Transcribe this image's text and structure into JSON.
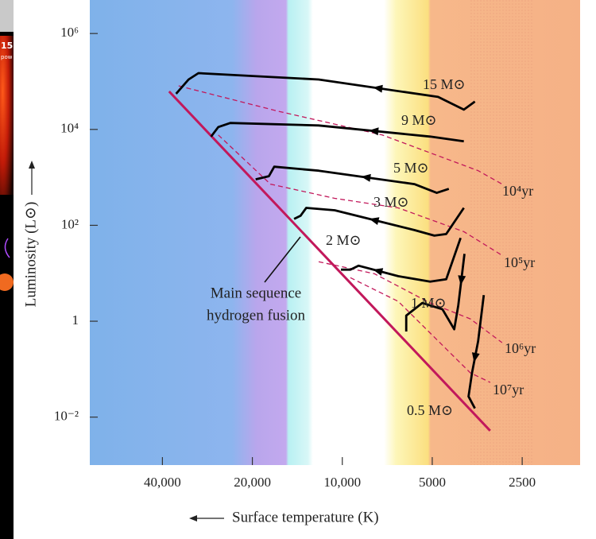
{
  "left_fragment": {
    "number": "15",
    "text": "pow"
  },
  "chart_data": {
    "type": "line",
    "x_scale": "log",
    "y_scale": "log",
    "xlabel": "Surface temperature (K)",
    "ylabel": "Luminosity (L⊙)",
    "xlim": [
      70000,
      1600
    ],
    "ylim": [
      0.001,
      5000000
    ],
    "xticks": [
      {
        "value": 40000,
        "label": "40,000"
      },
      {
        "value": 20000,
        "label": "20,000"
      },
      {
        "value": 10000,
        "label": "10,000"
      },
      5000,
      2500
    ],
    "yticks": [
      {
        "value": 1000000,
        "label": "10⁶"
      },
      {
        "value": 10000,
        "label": "10⁴"
      },
      {
        "value": 100,
        "label": "10²"
      },
      1,
      {
        "value": 0.01,
        "label": "10⁻²"
      }
    ],
    "series": [
      {
        "name": "15 M⊙",
        "color": "#000000",
        "x": [
          3600,
          3920,
          4780,
          12000,
          30300,
          32700,
          36000
        ],
        "values": [
          38000,
          25900,
          47600,
          110000,
          149000,
          110000,
          55500
        ]
      },
      {
        "name": "9 M⊙",
        "color": "#000000",
        "x": [
          3920,
          5080,
          12000,
          23700,
          26000,
          27500
        ],
        "values": [
          5650,
          7100,
          12100,
          13600,
          11200,
          7100
        ]
      },
      {
        "name": "5 M⊙",
        "color": "#000000",
        "x": [
          4400,
          4830,
          5740,
          12000,
          16900,
          17600,
          19500
        ],
        "values": [
          575,
          476,
          724,
          1380,
          1670,
          1060,
          910
        ]
      },
      {
        "name": "3 M⊙",
        "color": "#000000",
        "x": [
          3920,
          4490,
          4920,
          5740,
          10600,
          13200,
          13800,
          14500
        ],
        "values": [
          231,
          65.8,
          61,
          79.6,
          206,
          231,
          158,
          136
        ]
      },
      {
        "name": "2 M⊙",
        "color": "#000000",
        "x": [
          4020,
          4490,
          5080,
          6500,
          8830,
          9400,
          10100
        ],
        "values": [
          54.5,
          7.5,
          6.7,
          8.7,
          14.4,
          11.9,
          11.9
        ]
      },
      {
        "name": "1 M⊙",
        "color": "#000000",
        "x": [
          3900,
          4090,
          4220,
          4620,
          5400,
          6110,
          6110
        ],
        "values": [
          25.4,
          2.14,
          0.68,
          1.77,
          2.4,
          1.31,
          0.61
        ]
      },
      {
        "name": "0.5 M⊙",
        "color": "#000000",
        "x": [
          3360,
          3510,
          3680,
          3780,
          3600
        ],
        "values": [
          3.5,
          0.386,
          0.084,
          0.027,
          0.0152
        ]
      }
    ],
    "isochrones": [
      {
        "name": "10⁴yr",
        "color": "#c2185b",
        "x": [
          35300,
          16400,
          7350,
          3510,
          2920
        ],
        "values": [
          81000,
          24000,
          7650,
          1380,
          724
        ]
      },
      {
        "name": "10⁵yr",
        "color": "#c2185b",
        "x": [
          26000,
          17400,
          10600,
          6500,
          3920,
          2920
        ],
        "values": [
          7650,
          724,
          365,
          231,
          73.8,
          23.6
        ]
      },
      {
        "name": "10⁶yr",
        "color": "#c2185b",
        "x": [
          12000,
          7810,
          5080,
          3730,
          2920
        ],
        "values": [
          17.4,
          9.8,
          2.4,
          1.12,
          0.358
        ]
      },
      {
        "name": "10⁷yr",
        "color": "#c2185b",
        "x": [
          9400,
          6500,
          4490,
          3730,
          3200
        ],
        "values": [
          8.1,
          2.59,
          0.264,
          0.084,
          0.053
        ]
      }
    ],
    "main_sequence": {
      "label": [
        "Main sequence",
        "hydrogen fusion"
      ],
      "color": "#c2185b",
      "x": [
        38000,
        3200
      ],
      "values": [
        62000,
        0.0052
      ]
    }
  }
}
